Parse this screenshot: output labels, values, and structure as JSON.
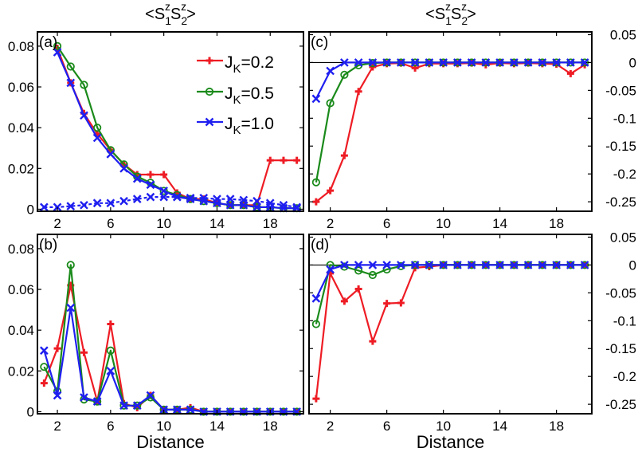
{
  "colors": {
    "red": "#ee1c24",
    "green": "#1a8a1a",
    "blue": "#1f1ff0"
  },
  "column_titles": {
    "left": {
      "open": "<S",
      "sub1": "1",
      "sup1": "z",
      "mid": "S",
      "sub2": "2",
      "sup2": "z",
      "close": ">"
    },
    "right": {
      "open": "<S",
      "sub1": "1",
      "sup1": "z",
      "mid": "S",
      "sub2": "2",
      "sup2": "z",
      "close": ">"
    }
  },
  "legend": [
    {
      "prefix": "J",
      "sub": "K",
      "value": "=0.2",
      "color": "red",
      "marker": "plus"
    },
    {
      "prefix": "J",
      "sub": "K",
      "value": "=0.5",
      "color": "green",
      "marker": "circle"
    },
    {
      "prefix": "J",
      "sub": "K",
      "value": "=1.0",
      "color": "blue",
      "marker": "cross"
    }
  ],
  "chart_data": [
    {
      "panel": "(a)",
      "type": "line",
      "xlabel": "",
      "xlim": [
        0.5,
        20.5
      ],
      "ylim": [
        -0.001,
        0.087
      ],
      "xticks": [
        2,
        6,
        10,
        14,
        18
      ],
      "yticks": [
        0,
        0.02,
        0.04,
        0.06,
        0.08
      ],
      "ytick_labels": [
        "0",
        "0.02",
        "0.04",
        "0.06",
        "0.08"
      ],
      "ytick_side": "left",
      "series": [
        {
          "name": "J_K=0.2",
          "color": "red",
          "marker": "plus",
          "x": [
            2,
            3,
            4,
            5,
            6,
            7,
            8,
            9,
            10,
            11,
            12,
            13,
            14,
            15,
            16,
            17,
            18,
            19,
            20
          ],
          "values": [
            0.079,
            0.062,
            0.047,
            0.037,
            0.029,
            0.022,
            0.017,
            0.017,
            0.017,
            0.008,
            0.005,
            0.005,
            0.003,
            0.002,
            0.002,
            0.002,
            0.024,
            0.024,
            0.024
          ]
        },
        {
          "name": "J_K=0.5",
          "color": "green",
          "marker": "circle",
          "x": [
            2,
            3,
            4,
            5,
            6,
            7,
            8,
            9,
            10,
            11,
            12,
            13,
            14,
            15,
            16,
            17,
            18,
            19,
            20
          ],
          "values": [
            0.08,
            0.07,
            0.061,
            0.04,
            0.029,
            0.022,
            0.016,
            0.013,
            0.009,
            0.007,
            0.005,
            0.004,
            0.003,
            0.002,
            0.002,
            0.001,
            0.001,
            0.0005,
            0.0005
          ]
        },
        {
          "name": "J_K=1.0",
          "color": "blue",
          "marker": "cross",
          "x": [
            2,
            3,
            4,
            5,
            6,
            7,
            8,
            9,
            10,
            11,
            12,
            13,
            14,
            15,
            16,
            17,
            18,
            19,
            20
          ],
          "values": [
            0.077,
            0.062,
            0.046,
            0.035,
            0.027,
            0.02,
            0.015,
            0.012,
            0.009,
            0.006,
            0.005,
            0.004,
            0.003,
            0.002,
            0.002,
            0.001,
            0.001,
            0.0005,
            0.0005
          ]
        },
        {
          "name": "J_K=1.0 (dotted)",
          "color": "blue",
          "marker": "cross",
          "dashed": true,
          "x": [
            1,
            2,
            3,
            4,
            5,
            6,
            7,
            8,
            9,
            10,
            11,
            12,
            13,
            14,
            15,
            16,
            17,
            18,
            19,
            20
          ],
          "values": [
            0.001,
            0.001,
            0.0015,
            0.002,
            0.003,
            0.003,
            0.004,
            0.005,
            0.006,
            0.006,
            0.006,
            0.0055,
            0.0055,
            0.005,
            0.005,
            0.0045,
            0.004,
            0.003,
            0.002,
            0.001
          ]
        }
      ]
    },
    {
      "panel": "(c)",
      "type": "line",
      "xlabel": "",
      "xlim": [
        0.5,
        20.5
      ],
      "ylim": [
        -0.267,
        0.055
      ],
      "xticks": [
        2,
        6,
        10,
        14,
        18
      ],
      "yticks": [
        0.05,
        0,
        -0.05,
        -0.1,
        -0.15,
        -0.2,
        -0.25
      ],
      "ytick_labels": [
        "0.05",
        "0",
        "-0.05",
        "-0.1",
        "-0.15",
        "-0.2",
        "-0.25"
      ],
      "ytick_side": "right",
      "zero_line": true,
      "series": [
        {
          "name": "J_K=0.2",
          "color": "red",
          "marker": "plus",
          "x": [
            1,
            2,
            3,
            4,
            5,
            6,
            7,
            8,
            9,
            10,
            11,
            12,
            13,
            14,
            15,
            16,
            17,
            18,
            19,
            20
          ],
          "values": [
            -0.25,
            -0.23,
            -0.167,
            -0.052,
            -0.008,
            -0.002,
            -0.001,
            -0.01,
            -0.002,
            -0.002,
            -0.002,
            -0.001,
            -0.004,
            -0.001,
            -0.002,
            -0.001,
            -0.002,
            -0.003,
            -0.02,
            -0.004
          ]
        },
        {
          "name": "J_K=0.5",
          "color": "green",
          "marker": "circle",
          "x": [
            1,
            2,
            3,
            4,
            5,
            6,
            7,
            8,
            9,
            10,
            11,
            12,
            13,
            14,
            15,
            16,
            17,
            18,
            19,
            20
          ],
          "values": [
            -0.215,
            -0.073,
            -0.022,
            -0.005,
            -0.001,
            0,
            0,
            0,
            0,
            0,
            0,
            0,
            0,
            0,
            0,
            0,
            0,
            0,
            0,
            0
          ]
        },
        {
          "name": "J_K=1.0",
          "color": "blue",
          "marker": "cross",
          "x": [
            1,
            2,
            3,
            4,
            5,
            6,
            7,
            8,
            9,
            10,
            11,
            12,
            13,
            14,
            15,
            16,
            17,
            18,
            19,
            20
          ],
          "values": [
            -0.065,
            -0.015,
            0,
            0,
            0,
            0,
            0,
            0,
            0,
            0,
            0,
            0,
            0,
            0,
            0,
            0,
            0,
            0,
            0,
            0
          ]
        }
      ]
    },
    {
      "panel": "(b)",
      "type": "line",
      "xlabel": "Distance",
      "xlim": [
        0.5,
        20.5
      ],
      "ylim": [
        -0.001,
        0.087
      ],
      "xticks": [
        2,
        6,
        10,
        14,
        18
      ],
      "yticks": [
        0,
        0.02,
        0.04,
        0.06,
        0.08
      ],
      "ytick_labels": [
        "0",
        "0.02",
        "0.04",
        "0.06",
        "0.08"
      ],
      "ytick_side": "left",
      "series": [
        {
          "name": "J_K=0.2",
          "color": "red",
          "marker": "plus",
          "x": [
            1,
            2,
            3,
            4,
            5,
            6,
            7,
            8,
            9,
            10,
            11,
            12,
            13,
            14,
            15,
            16,
            17,
            18,
            19,
            20
          ],
          "values": [
            0.014,
            0.031,
            0.062,
            0.029,
            0.005,
            0.043,
            0.004,
            0.002,
            0.008,
            0.001,
            0.001,
            0.002,
            0,
            0,
            0,
            0,
            0,
            0,
            0,
            0
          ]
        },
        {
          "name": "J_K=0.5",
          "color": "green",
          "marker": "circle",
          "x": [
            1,
            2,
            3,
            4,
            5,
            6,
            7,
            8,
            9,
            10,
            11,
            12,
            13,
            14,
            15,
            16,
            17,
            18,
            19,
            20
          ],
          "values": [
            0.022,
            0.01,
            0.072,
            0.006,
            0.005,
            0.03,
            0.003,
            0.003,
            0.007,
            0.001,
            0.001,
            0.001,
            0,
            0,
            0,
            0,
            0,
            0,
            0,
            0
          ]
        },
        {
          "name": "J_K=1.0",
          "color": "blue",
          "marker": "cross",
          "x": [
            1,
            2,
            3,
            4,
            5,
            6,
            7,
            8,
            9,
            10,
            11,
            12,
            13,
            14,
            15,
            16,
            17,
            18,
            19,
            20
          ],
          "values": [
            0.03,
            0.008,
            0.051,
            0.007,
            0.005,
            0.02,
            0.003,
            0.003,
            0.008,
            0.001,
            0.001,
            0.001,
            0,
            0,
            0,
            0,
            0,
            0,
            0,
            0
          ]
        }
      ]
    },
    {
      "panel": "(d)",
      "type": "line",
      "xlabel": "Distance",
      "xlim": [
        0.5,
        20.5
      ],
      "ylim": [
        -0.267,
        0.055
      ],
      "xticks": [
        2,
        6,
        10,
        14,
        18
      ],
      "yticks": [
        0.05,
        0,
        -0.05,
        -0.1,
        -0.15,
        -0.2,
        -0.25
      ],
      "ytick_labels": [
        "0.05",
        "0",
        "-0.05",
        "-0.1",
        "-0.15",
        "-0.2",
        "-0.25"
      ],
      "ytick_side": "right",
      "zero_line": true,
      "series": [
        {
          "name": "J_K=0.2",
          "color": "red",
          "marker": "plus",
          "x": [
            1,
            2,
            3,
            4,
            5,
            6,
            7,
            8,
            9,
            10,
            11,
            12,
            13,
            14,
            15,
            16,
            17,
            18,
            19,
            20
          ],
          "values": [
            -0.24,
            -0.015,
            -0.065,
            -0.043,
            -0.137,
            -0.069,
            -0.068,
            -0.005,
            -0.003,
            0,
            0,
            0,
            0,
            0,
            0,
            0,
            0,
            0,
            0,
            0
          ]
        },
        {
          "name": "J_K=0.5",
          "color": "green",
          "marker": "circle",
          "x": [
            1,
            2,
            3,
            4,
            5,
            6,
            7,
            8,
            9,
            10,
            11,
            12,
            13,
            14,
            15,
            16,
            17,
            18,
            19,
            20
          ],
          "values": [
            -0.106,
            0,
            -0.003,
            -0.01,
            -0.018,
            -0.008,
            -0.002,
            0,
            0,
            0,
            0,
            0,
            0,
            0,
            0,
            0,
            0,
            0,
            0,
            0
          ]
        },
        {
          "name": "J_K=1.0",
          "color": "blue",
          "marker": "cross",
          "x": [
            1,
            2,
            3,
            4,
            5,
            6,
            7,
            8,
            9,
            10,
            11,
            12,
            13,
            14,
            15,
            16,
            17,
            18,
            19,
            20
          ],
          "values": [
            -0.06,
            -0.008,
            0,
            0,
            0,
            0,
            0,
            0,
            0,
            0,
            0,
            0,
            0,
            0,
            0,
            0,
            0,
            0,
            0,
            0
          ]
        }
      ]
    }
  ]
}
